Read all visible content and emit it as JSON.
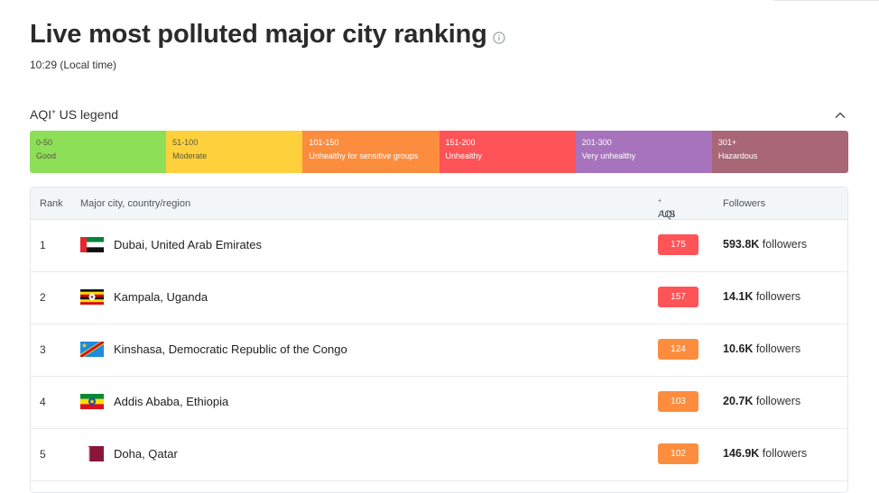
{
  "header": {
    "title": "Live most polluted major city ranking",
    "local_time": "10:29 (Local time)"
  },
  "legend": {
    "title": "AQI",
    "title_sup": "+",
    "title_suffix": " US legend",
    "segments": [
      {
        "range": "0-50",
        "label": "Good",
        "color": "#8ddf58"
      },
      {
        "range": "51-100",
        "label": "Moderate",
        "color": "#fdd03c"
      },
      {
        "range": "101-150",
        "label": "Unhealthy for sensitive groups",
        "color": "#fd8d3e"
      },
      {
        "range": "151-200",
        "label": "Unhealthy",
        "color": "#fe5357"
      },
      {
        "range": "201-300",
        "label": "Very unhealthy",
        "color": "#a773bd"
      },
      {
        "range": "301+",
        "label": "Hazardous",
        "color": "#a96676"
      }
    ]
  },
  "table": {
    "headers": {
      "rank": "Rank",
      "city": "Major city, country/region",
      "aqi": "AQI",
      "aqi_sup": "+",
      "aqi_suffix": " US",
      "followers": "Followers"
    },
    "rows": [
      {
        "rank": "1",
        "city": "Dubai, United Arab Emirates",
        "aqi": "175",
        "aqi_color": "#fe5357",
        "followers_count": "593.8K",
        "followers_label": " followers",
        "flag": "uae-flag"
      },
      {
        "rank": "2",
        "city": "Kampala, Uganda",
        "aqi": "157",
        "aqi_color": "#fe5357",
        "followers_count": "14.1K",
        "followers_label": " followers",
        "flag": "uganda-flag"
      },
      {
        "rank": "3",
        "city": "Kinshasa, Democratic Republic of the Congo",
        "aqi": "124",
        "aqi_color": "#fd8d3e",
        "followers_count": "10.6K",
        "followers_label": " followers",
        "flag": "drc-flag"
      },
      {
        "rank": "4",
        "city": "Addis Ababa, Ethiopia",
        "aqi": "103",
        "aqi_color": "#fd8d3e",
        "followers_count": "20.7K",
        "followers_label": " followers",
        "flag": "ethiopia-flag"
      },
      {
        "rank": "5",
        "city": "Doha, Qatar",
        "aqi": "102",
        "aqi_color": "#fd8d3e",
        "followers_count": "146.9K",
        "followers_label": " followers",
        "flag": "qatar-flag"
      }
    ]
  }
}
